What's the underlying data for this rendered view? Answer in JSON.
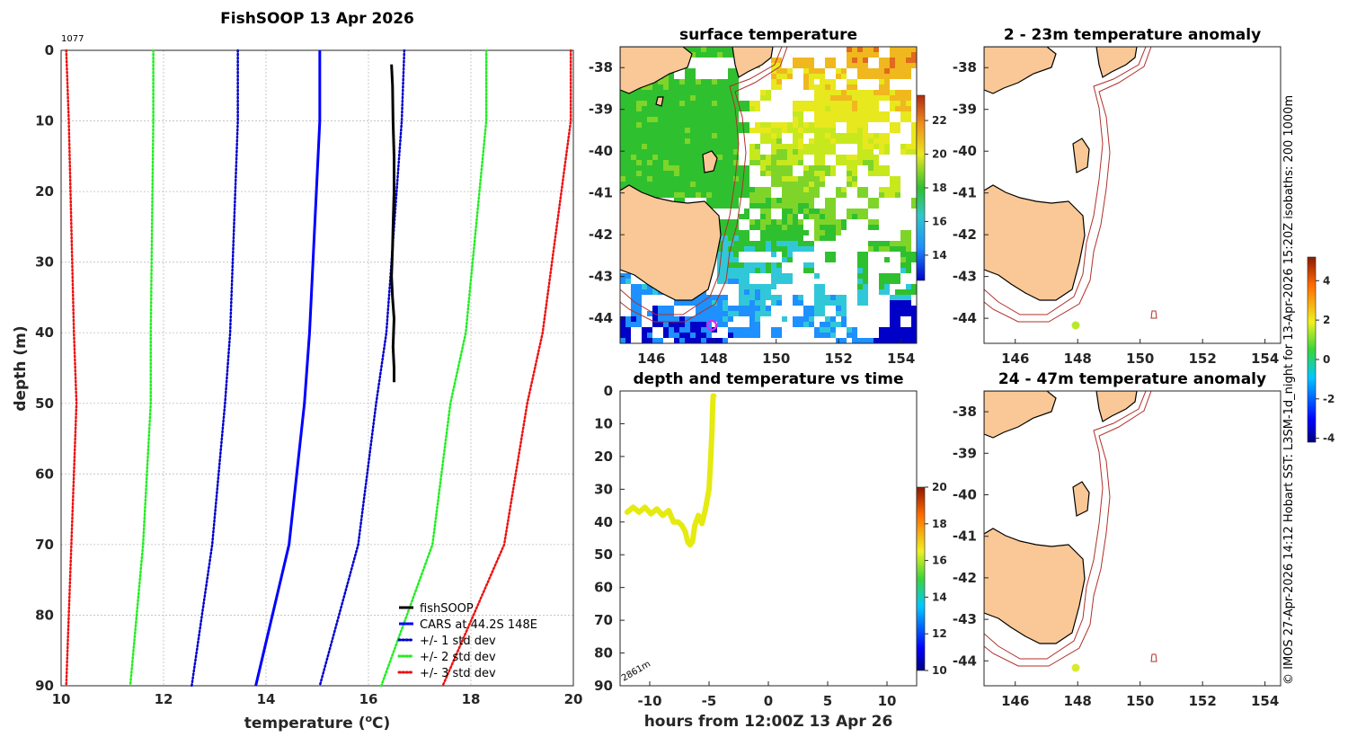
{
  "figure": {
    "profile_title": "FishSOOP 13 Apr 2026",
    "profile_id": "1077",
    "sst_title": "surface temperature",
    "anom1_title": "2 - 23m temperature anomaly",
    "anom2_title": "24 - 47m temperature anomaly",
    "time_title": "depth and temperature vs time",
    "side_note": "© IMOS 27-Apr-2026 14:12 Hobart SST: L3SM-1d_night for 13-Apr-2026 15:20Z isobaths: 200  1000m",
    "bottom_depth_label": "2861m",
    "colors": {
      "sst_high": "#d83a16",
      "sst_mid": "#f2e414",
      "sst_low": "#1e90ff",
      "track": "#e5ea0f",
      "marker_sst": "#e81fe8",
      "marker_anom": "#b8e82c"
    }
  },
  "chart_data": [
    {
      "type": "line",
      "name": "temperature-profile",
      "xlabel": "temperature (°C)",
      "ylabel": "depth (m)",
      "xlim": [
        10,
        20
      ],
      "ylim": [
        90,
        0
      ],
      "xticks": [
        "10",
        "12",
        "14",
        "16",
        "18",
        "20"
      ],
      "yticks": [
        "0",
        "10",
        "20",
        "30",
        "40",
        "50",
        "60",
        "70",
        "80",
        "90"
      ],
      "legend": [
        "fishSOOP",
        "CARS at 44.2S 148E",
        "+/- 1 std dev",
        "+/- 2 std dev",
        "+/- 3 std dev"
      ],
      "legend_position": "bottom-right",
      "depth": [
        0,
        10,
        40,
        50,
        70,
        90
      ],
      "series": [
        {
          "name": "CARS at 44.2S 148E",
          "color": "#0000ff",
          "style": "solid",
          "values": [
            15.05,
            15.05,
            14.85,
            14.75,
            14.45,
            13.8
          ]
        },
        {
          "name": "+1 std",
          "color": "#0000cc",
          "style": "dot",
          "values": [
            16.7,
            16.65,
            16.35,
            16.15,
            15.8,
            15.05
          ]
        },
        {
          "name": "-1 std",
          "color": "#0000cc",
          "style": "dot",
          "values": [
            13.45,
            13.45,
            13.3,
            13.2,
            12.95,
            12.55
          ]
        },
        {
          "name": "+2 std",
          "color": "#22ee22",
          "style": "dot",
          "values": [
            18.3,
            18.3,
            17.9,
            17.6,
            17.25,
            16.25
          ]
        },
        {
          "name": "-2 std",
          "color": "#22ee22",
          "style": "dot",
          "values": [
            11.8,
            11.8,
            11.75,
            11.75,
            11.6,
            11.35
          ]
        },
        {
          "name": "+3 std",
          "color": "#ee1111",
          "style": "dot",
          "values": [
            19.95,
            19.95,
            19.4,
            19.1,
            18.65,
            17.45
          ]
        },
        {
          "name": "-3 std",
          "color": "#ee1111",
          "style": "dot",
          "values": [
            10.1,
            10.15,
            10.25,
            10.3,
            10.2,
            10.1
          ]
        }
      ],
      "fishsoop": {
        "name": "fishSOOP",
        "color": "#000000",
        "temperature": [
          16.45,
          16.47,
          16.48,
          16.5,
          16.5,
          16.48,
          16.47,
          16.45,
          16.47,
          16.5,
          16.48,
          16.5,
          16.5
        ],
        "depth": [
          2,
          5,
          10,
          15,
          20,
          25,
          28,
          32,
          35,
          38,
          42,
          45,
          47
        ]
      }
    },
    {
      "type": "scatter",
      "name": "depth-vs-time",
      "xlabel": "hours from 12:00Z 13 Apr 26",
      "ylabel": "",
      "xlim": [
        -12.5,
        12.5
      ],
      "ylim": [
        90,
        0
      ],
      "xticks": [
        "-10",
        "-5",
        "0",
        "5",
        "10"
      ],
      "yticks": [
        "0",
        "10",
        "20",
        "30",
        "40",
        "50",
        "60",
        "70",
        "80",
        "90"
      ],
      "colorbar": {
        "range": [
          10,
          20
        ],
        "ticks": [
          "10",
          "12",
          "14",
          "16",
          "18",
          "20"
        ]
      },
      "track": {
        "hours": [
          -11.9,
          -11.4,
          -10.9,
          -10.4,
          -9.9,
          -9.4,
          -8.9,
          -8.4,
          -8.0,
          -7.6,
          -7.3,
          -7.0,
          -6.8,
          -6.6,
          -6.4,
          -6.2,
          -5.9,
          -5.6,
          -5.3,
          -5.0,
          -4.85,
          -4.75,
          -4.7,
          -4.65,
          -4.6,
          -4.6
        ],
        "depth": [
          37,
          35.5,
          37,
          35.5,
          37.5,
          36,
          38,
          36.5,
          40,
          40,
          41,
          43,
          46,
          47,
          46,
          41,
          38,
          40.5,
          36,
          30,
          20,
          12,
          5,
          1.5,
          1.5,
          1.5
        ]
      }
    },
    {
      "type": "heatmap",
      "name": "surface-temperature-map",
      "xticks": [
        "146",
        "148",
        "150",
        "152",
        "154"
      ],
      "yticks": [
        "-38",
        "-39",
        "-40",
        "-41",
        "-42",
        "-43",
        "-44"
      ],
      "xlim": [
        145,
        154.5
      ],
      "ylim": [
        -44.6,
        -37.5
      ],
      "colorbar": {
        "range": [
          12.5,
          23.5
        ],
        "ticks": [
          "14",
          "16",
          "18",
          "20",
          "22"
        ]
      },
      "marker": {
        "lon": 148.0,
        "lat": -44.2
      }
    },
    {
      "type": "heatmap",
      "name": "anomaly-2-23m-map",
      "xticks": [
        "146",
        "148",
        "150",
        "152",
        "154"
      ],
      "yticks": [
        "-38",
        "-39",
        "-40",
        "-41",
        "-42",
        "-43",
        "-44"
      ],
      "colorbar": {
        "range": [
          -4.2,
          5.2
        ],
        "ticks": [
          "-4",
          "-2",
          "0",
          "2",
          "4"
        ]
      },
      "marker": {
        "lon": 148.0,
        "lat": -44.2
      }
    },
    {
      "type": "heatmap",
      "name": "anomaly-24-47m-map",
      "xticks": [
        "146",
        "148",
        "150",
        "152",
        "154"
      ],
      "yticks": [
        "-38",
        "-39",
        "-40",
        "-41",
        "-42",
        "-43",
        "-44"
      ],
      "marker": {
        "lon": 148.0,
        "lat": -44.2
      }
    }
  ]
}
